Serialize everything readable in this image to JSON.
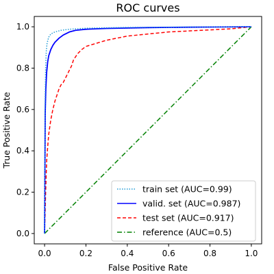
{
  "chart_data": {
    "type": "line",
    "title": "ROC curves",
    "xlabel": "False Positive Rate",
    "ylabel": "True Positive Rate",
    "xlim": [
      -0.05,
      1.05
    ],
    "ylim": [
      -0.05,
      1.05
    ],
    "xticks": [
      "0.0",
      "0.2",
      "0.4",
      "0.6",
      "0.8",
      "1.0"
    ],
    "yticks": [
      "0.0",
      "0.2",
      "0.4",
      "0.6",
      "0.8",
      "1.0"
    ],
    "grid": false,
    "legend_position": "lower-right",
    "series": [
      {
        "name": "train set (AUC=0.99)",
        "color": "#1f9ad6",
        "style": "dotted",
        "x": [
          0.0,
          0.002,
          0.005,
          0.008,
          0.012,
          0.02,
          0.03,
          0.05,
          0.08,
          0.12,
          0.2,
          0.4,
          0.7,
          1.0
        ],
        "y": [
          0.0,
          0.6,
          0.8,
          0.88,
          0.92,
          0.95,
          0.965,
          0.975,
          0.983,
          0.988,
          0.993,
          0.997,
          0.999,
          1.0
        ]
      },
      {
        "name": "valid. set (AUC=0.987)",
        "color": "#0000ff",
        "style": "solid",
        "x": [
          0.0,
          0.003,
          0.006,
          0.01,
          0.015,
          0.02,
          0.03,
          0.04,
          0.05,
          0.07,
          0.09,
          0.12,
          0.15,
          0.2,
          0.3,
          0.5,
          0.7,
          0.85,
          1.0
        ],
        "y": [
          0.0,
          0.58,
          0.7,
          0.78,
          0.83,
          0.86,
          0.89,
          0.91,
          0.925,
          0.945,
          0.96,
          0.975,
          0.983,
          0.988,
          0.992,
          0.996,
          0.998,
          0.999,
          1.0
        ]
      },
      {
        "name": "test set (AUC=0.917)",
        "color": "#ff0000",
        "style": "dashed",
        "x": [
          0.0,
          0.005,
          0.01,
          0.015,
          0.02,
          0.03,
          0.04,
          0.05,
          0.06,
          0.07,
          0.08,
          0.09,
          0.1,
          0.11,
          0.12,
          0.13,
          0.14,
          0.16,
          0.18,
          0.2,
          0.25,
          0.3,
          0.35,
          0.4,
          0.5,
          0.6,
          0.7,
          0.8,
          0.9,
          1.0
        ],
        "y": [
          0.0,
          0.2,
          0.35,
          0.42,
          0.48,
          0.55,
          0.6,
          0.64,
          0.67,
          0.7,
          0.72,
          0.73,
          0.75,
          0.77,
          0.79,
          0.81,
          0.84,
          0.87,
          0.89,
          0.905,
          0.92,
          0.935,
          0.945,
          0.955,
          0.965,
          0.975,
          0.98,
          0.985,
          0.99,
          1.0
        ]
      },
      {
        "name": "reference (AUC=0.5)",
        "color": "#008000",
        "style": "dashdot",
        "x": [
          0.0,
          1.0
        ],
        "y": [
          0.0,
          1.0
        ]
      }
    ]
  }
}
